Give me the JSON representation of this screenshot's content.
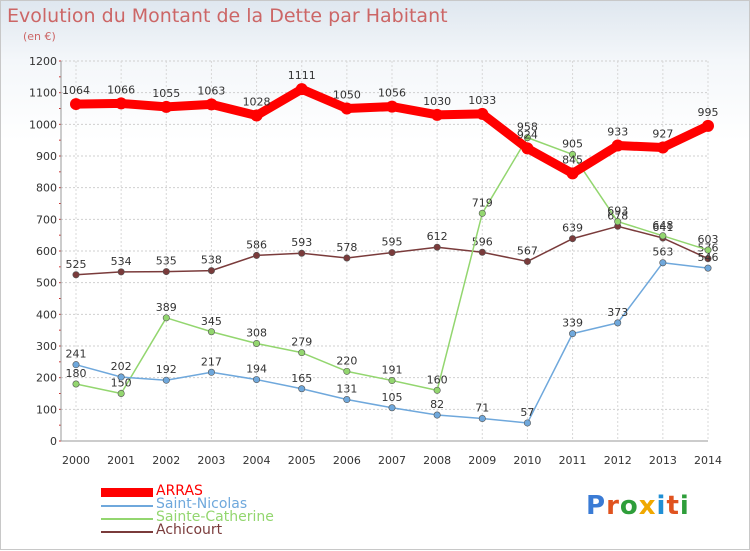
{
  "title": "Evolution du Montant de la Dette par Habitant",
  "subtitle": "(en €)",
  "logo": "Proxiti",
  "chart_data": {
    "type": "line",
    "title": "Evolution du Montant de la Dette par Habitant",
    "subtitle": "(en €)",
    "x": [
      "2000",
      "2001",
      "2002",
      "2003",
      "2004",
      "2005",
      "2006",
      "2007",
      "2008",
      "2009",
      "2010",
      "2011",
      "2012",
      "2013",
      "2014"
    ],
    "ylim": [
      0,
      1200
    ],
    "yticks": [
      0,
      100,
      200,
      300,
      400,
      500,
      600,
      700,
      800,
      900,
      1000,
      1100,
      1200
    ],
    "grid": true,
    "legend_position": "bottom-left",
    "series": [
      {
        "name": "ARRAS",
        "color": "#ff0000",
        "values": [
          1064,
          1066,
          1055,
          1063,
          1028,
          1111,
          1050,
          1056,
          1030,
          1033,
          924,
          845,
          933,
          927,
          995
        ]
      },
      {
        "name": "Saint-Nicolas",
        "color": "#6fa8dc",
        "values": [
          241,
          202,
          192,
          217,
          194,
          165,
          131,
          105,
          82,
          71,
          57,
          339,
          373,
          563,
          546
        ]
      },
      {
        "name": "Sainte-Catherine",
        "color": "#93d66f",
        "values": [
          180,
          150,
          389,
          345,
          308,
          279,
          220,
          191,
          160,
          719,
          958,
          905,
          693,
          648,
          603
        ]
      },
      {
        "name": "Achicourt",
        "color": "#7a3b3b",
        "values": [
          525,
          534,
          535,
          538,
          586,
          593,
          578,
          595,
          612,
          596,
          567,
          639,
          678,
          641,
          576
        ]
      }
    ]
  }
}
